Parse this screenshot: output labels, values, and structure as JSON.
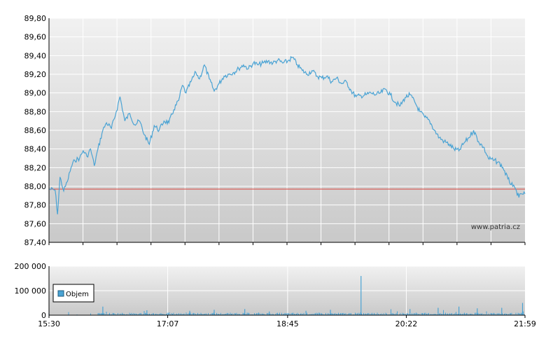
{
  "watermark": "www.patria.cz",
  "colors": {
    "price_line": "#4aa3d4",
    "reference_line": "#d9413a",
    "volume_bars": "#4aa3d4",
    "grid": "#ffffff",
    "plot_top": "#f1f1f1",
    "plot_bottom": "#c9c9c9",
    "axis": "#000000"
  },
  "chart_data": [
    {
      "type": "line",
      "title": "",
      "xlabel": "",
      "ylabel": "",
      "ylim": [
        87.4,
        89.8
      ],
      "y_ticks": [
        "89,80",
        "89,60",
        "89,40",
        "89,20",
        "89,00",
        "88,80",
        "88,60",
        "88,40",
        "88,20",
        "88,00",
        "87,80",
        "87,60",
        "87,40"
      ],
      "x_range": [
        "15:30",
        "21:59"
      ],
      "reference_value": 87.97,
      "grid": true,
      "series": [
        {
          "points": [
            [
              "15:30",
              87.97
            ],
            [
              "15:35",
              87.96
            ],
            [
              "15:37",
              87.7
            ],
            [
              "15:39",
              88.1
            ],
            [
              "15:42",
              87.95
            ],
            [
              "15:45",
              88.05
            ],
            [
              "15:48",
              88.2
            ],
            [
              "15:51",
              88.28
            ],
            [
              "15:55",
              88.3
            ],
            [
              "15:58",
              88.38
            ],
            [
              "16:01",
              88.32
            ],
            [
              "16:04",
              88.4
            ],
            [
              "16:07",
              88.22
            ],
            [
              "16:10",
              88.4
            ],
            [
              "16:14",
              88.6
            ],
            [
              "16:17",
              88.68
            ],
            [
              "16:21",
              88.62
            ],
            [
              "16:25",
              88.8
            ],
            [
              "16:28",
              88.96
            ],
            [
              "16:32",
              88.7
            ],
            [
              "16:36",
              88.78
            ],
            [
              "16:40",
              88.66
            ],
            [
              "16:44",
              88.7
            ],
            [
              "16:48",
              88.55
            ],
            [
              "16:52",
              88.45
            ],
            [
              "16:56",
              88.65
            ],
            [
              "17:00",
              88.6
            ],
            [
              "17:04",
              88.7
            ],
            [
              "17:08",
              88.68
            ],
            [
              "17:12",
              88.82
            ],
            [
              "17:16",
              88.92
            ],
            [
              "17:19",
              89.08
            ],
            [
              "17:22",
              89.0
            ],
            [
              "17:26",
              89.12
            ],
            [
              "17:30",
              89.22
            ],
            [
              "17:33",
              89.15
            ],
            [
              "17:37",
              89.3
            ],
            [
              "17:41",
              89.15
            ],
            [
              "17:45",
              89.02
            ],
            [
              "17:49",
              89.1
            ],
            [
              "17:53",
              89.18
            ],
            [
              "17:57",
              89.2
            ],
            [
              "18:01",
              89.22
            ],
            [
              "18:05",
              89.26
            ],
            [
              "18:09",
              89.3
            ],
            [
              "18:13",
              89.26
            ],
            [
              "18:17",
              89.32
            ],
            [
              "18:21",
              89.3
            ],
            [
              "18:25",
              89.32
            ],
            [
              "18:29",
              89.34
            ],
            [
              "18:33",
              89.32
            ],
            [
              "18:37",
              89.35
            ],
            [
              "18:41",
              89.32
            ],
            [
              "18:45",
              89.34
            ],
            [
              "18:49",
              89.38
            ],
            [
              "18:53",
              89.3
            ],
            [
              "18:57",
              89.24
            ],
            [
              "19:01",
              89.2
            ],
            [
              "19:05",
              89.24
            ],
            [
              "19:09",
              89.18
            ],
            [
              "19:13",
              89.16
            ],
            [
              "19:17",
              89.18
            ],
            [
              "19:21",
              89.12
            ],
            [
              "19:25",
              89.16
            ],
            [
              "19:29",
              89.1
            ],
            [
              "19:33",
              89.12
            ],
            [
              "19:37",
              89.02
            ],
            [
              "19:41",
              88.96
            ],
            [
              "19:45",
              88.97
            ],
            [
              "19:49",
              88.98
            ],
            [
              "19:53",
              89.0
            ],
            [
              "19:57",
              88.98
            ],
            [
              "20:01",
              89.0
            ],
            [
              "20:05",
              89.04
            ],
            [
              "20:09",
              88.98
            ],
            [
              "20:13",
              88.9
            ],
            [
              "20:17",
              88.86
            ],
            [
              "20:21",
              88.95
            ],
            [
              "20:25",
              88.98
            ],
            [
              "20:29",
              88.9
            ],
            [
              "20:33",
              88.8
            ],
            [
              "20:37",
              88.74
            ],
            [
              "20:41",
              88.7
            ],
            [
              "20:45",
              88.6
            ],
            [
              "20:49",
              88.52
            ],
            [
              "20:53",
              88.48
            ],
            [
              "20:57",
              88.45
            ],
            [
              "21:01",
              88.4
            ],
            [
              "21:05",
              88.38
            ],
            [
              "21:09",
              88.46
            ],
            [
              "21:13",
              88.52
            ],
            [
              "21:17",
              88.6
            ],
            [
              "21:21",
              88.48
            ],
            [
              "21:25",
              88.42
            ],
            [
              "21:29",
              88.3
            ],
            [
              "21:33",
              88.28
            ],
            [
              "21:37",
              88.26
            ],
            [
              "21:41",
              88.2
            ],
            [
              "21:45",
              88.08
            ],
            [
              "21:49",
              88.0
            ],
            [
              "21:52",
              87.95
            ],
            [
              "21:54",
              87.88
            ],
            [
              "21:56",
              87.92
            ],
            [
              "21:59",
              87.92
            ]
          ]
        }
      ]
    },
    {
      "type": "bar",
      "title": "",
      "xlabel": "",
      "ylabel": "",
      "ylim": [
        0,
        200000
      ],
      "y_ticks": [
        "200 000",
        "100 000",
        "0"
      ],
      "x_ticks": [
        "15:30",
        "17:07",
        "18:45",
        "20:22",
        "21:59"
      ],
      "x_range": [
        "15:30",
        "21:59"
      ],
      "grid": true,
      "legend": {
        "position": "left",
        "entries": [
          "Objem"
        ]
      },
      "series": [
        {
          "name": "Objem",
          "base_level": 5000,
          "spikes": [
            [
              "15:30",
              8000
            ],
            [
              "16:14",
              35000
            ],
            [
              "16:50",
              20000
            ],
            [
              "17:25",
              18000
            ],
            [
              "17:45",
              22000
            ],
            [
              "18:10",
              25000
            ],
            [
              "18:30",
              15000
            ],
            [
              "19:00",
              18000
            ],
            [
              "19:20",
              22000
            ],
            [
              "19:45",
              160000
            ],
            [
              "20:25",
              25000
            ],
            [
              "20:48",
              30000
            ],
            [
              "21:05",
              35000
            ],
            [
              "21:20",
              28000
            ],
            [
              "21:40",
              30000
            ],
            [
              "21:57",
              50000
            ]
          ]
        }
      ]
    }
  ]
}
